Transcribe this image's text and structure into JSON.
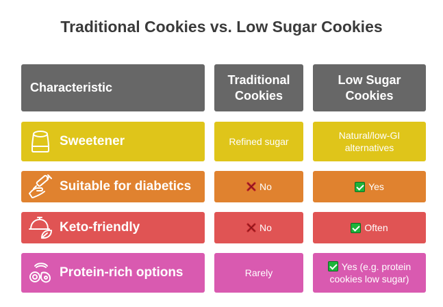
{
  "title": "Traditional Cookies vs. Low Sugar Cookies",
  "headers": {
    "characteristic": "Characteristic",
    "traditional_line1": "Traditional",
    "traditional_line2": "Cookies",
    "lowsugar_line1": "Low Sugar",
    "lowsugar_line2": "Cookies"
  },
  "rows": [
    {
      "label": "Sweetener",
      "icon": "sugar-jar-icon",
      "color": "#dfc51a",
      "traditional": "Refined sugar",
      "low_sugar_line1": "Natural/low-GI",
      "low_sugar_line2": "alternatives"
    },
    {
      "label": "Suitable for diabetics",
      "icon": "insulin-syringe-hand-icon",
      "color": "#e0822f",
      "traditional": "No",
      "traditional_mark": "cross",
      "low_sugar": "Yes",
      "low_sugar_mark": "check"
    },
    {
      "label": "Keto-friendly",
      "icon": "cloche-leaf-icon",
      "color": "#e05454",
      "traditional": "No",
      "traditional_mark": "cross",
      "low_sugar": "Often",
      "low_sugar_mark": "check"
    },
    {
      "label": "Protein-rich options",
      "icon": "protein-food-icon",
      "color": "#d95ab0",
      "traditional": "Rarely",
      "low_sugar_line1": "Yes (e.g. protein",
      "low_sugar_line2": "cookies low sugar)",
      "low_sugar_mark": "check"
    }
  ]
}
